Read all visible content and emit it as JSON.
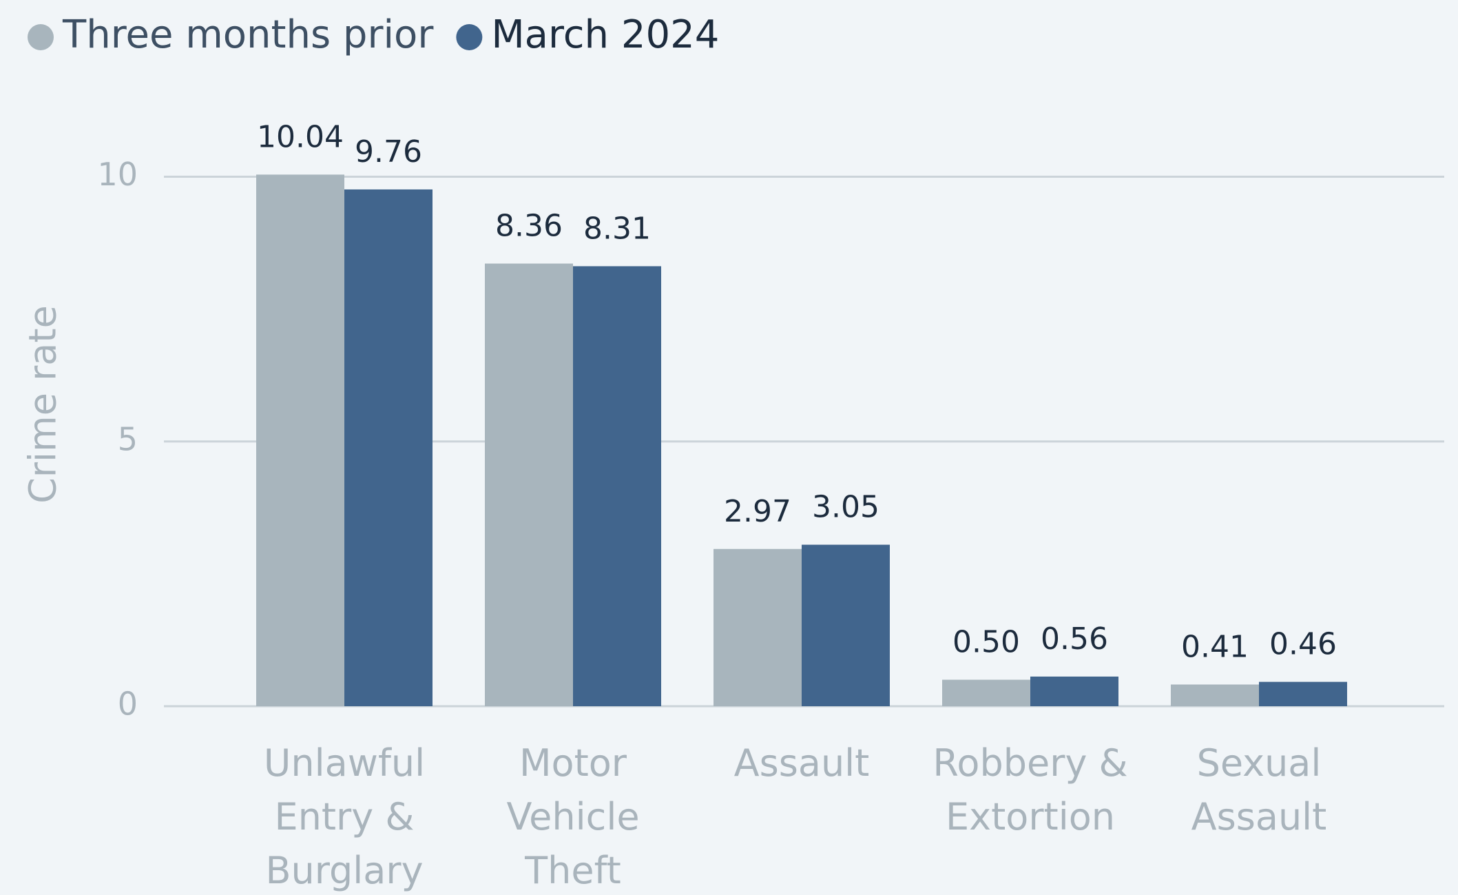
{
  "chart_data": {
    "type": "bar",
    "y_label": "Crime rate",
    "categories": [
      [
        "Unlawful",
        "Entry &",
        "Burglary"
      ],
      [
        "Motor",
        "Vehicle",
        "Theft"
      ],
      [
        "Assault"
      ],
      [
        "Robbery &",
        "Extortion"
      ],
      [
        "Sexual",
        "Assault"
      ]
    ],
    "series": [
      {
        "name": "Three months prior",
        "color": "#a8b5bd",
        "values": [
          10.04,
          8.36,
          2.97,
          0.5,
          0.41
        ],
        "value_labels": [
          "10.04",
          "8.36",
          "2.97",
          "0.50",
          "0.41"
        ]
      },
      {
        "name": "March 2024",
        "color": "#41658d",
        "values": [
          9.76,
          8.31,
          3.05,
          0.56,
          0.46
        ],
        "value_labels": [
          "9.76",
          "8.31",
          "3.05",
          "0.56",
          "0.46"
        ]
      }
    ],
    "ylim": [
      0,
      10.5
    ],
    "yticks": [
      0,
      5,
      10
    ],
    "grid": true,
    "legend": "top-left"
  }
}
